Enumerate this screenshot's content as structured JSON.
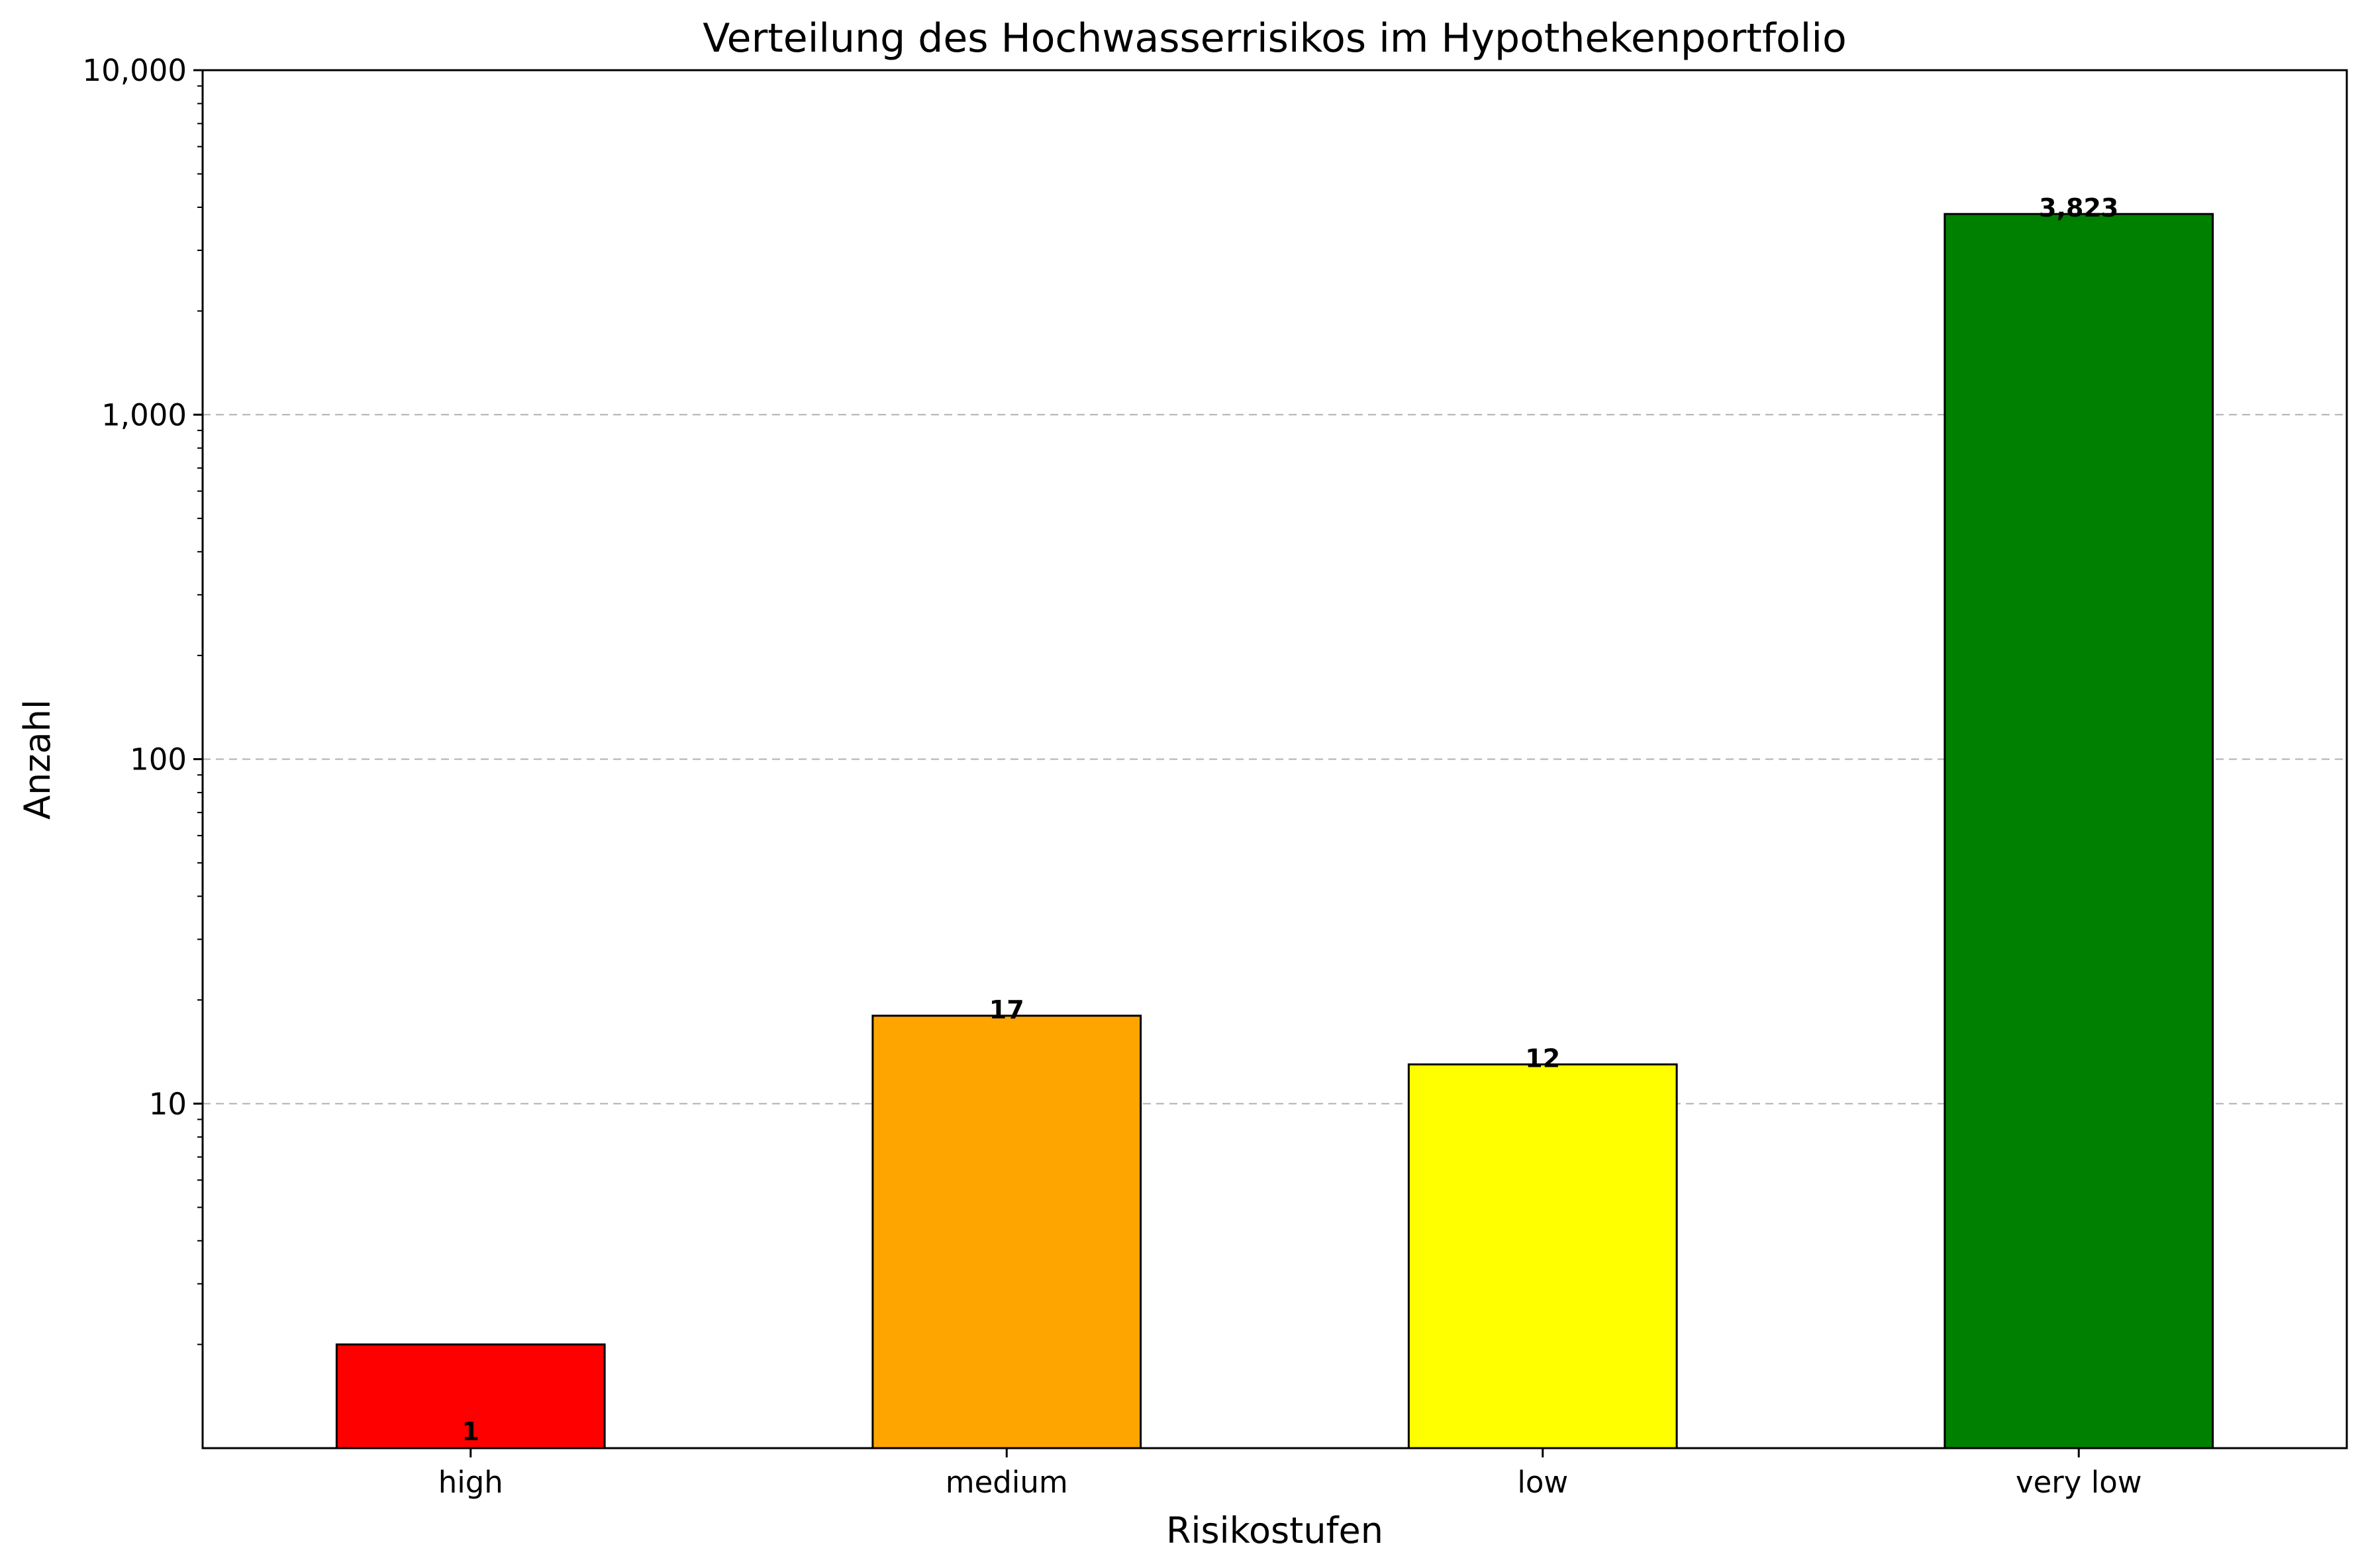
{
  "chart_data": {
    "type": "bar",
    "title": "Verteilung des Hochwasserrisikos im Hypothekenportfolio",
    "xlabel": "Risikostufen",
    "ylabel": "Anzahl",
    "yscale": "log",
    "ylim": [
      1,
      10000
    ],
    "grid": "y-major-dashed",
    "categories": [
      "high",
      "medium",
      "low",
      "very low"
    ],
    "values": [
      1,
      17,
      12,
      3823
    ],
    "data_labels": [
      "1",
      "17",
      "12",
      "3,823"
    ],
    "colors": [
      "#ff0000",
      "#ffa500",
      "#ffff00",
      "#008000"
    ],
    "y_ticks": [
      {
        "value": 10,
        "label": "10"
      },
      {
        "value": 100,
        "label": "100"
      },
      {
        "value": 1000,
        "label": "1,000"
      },
      {
        "value": 10000,
        "label": "10,000"
      }
    ]
  }
}
